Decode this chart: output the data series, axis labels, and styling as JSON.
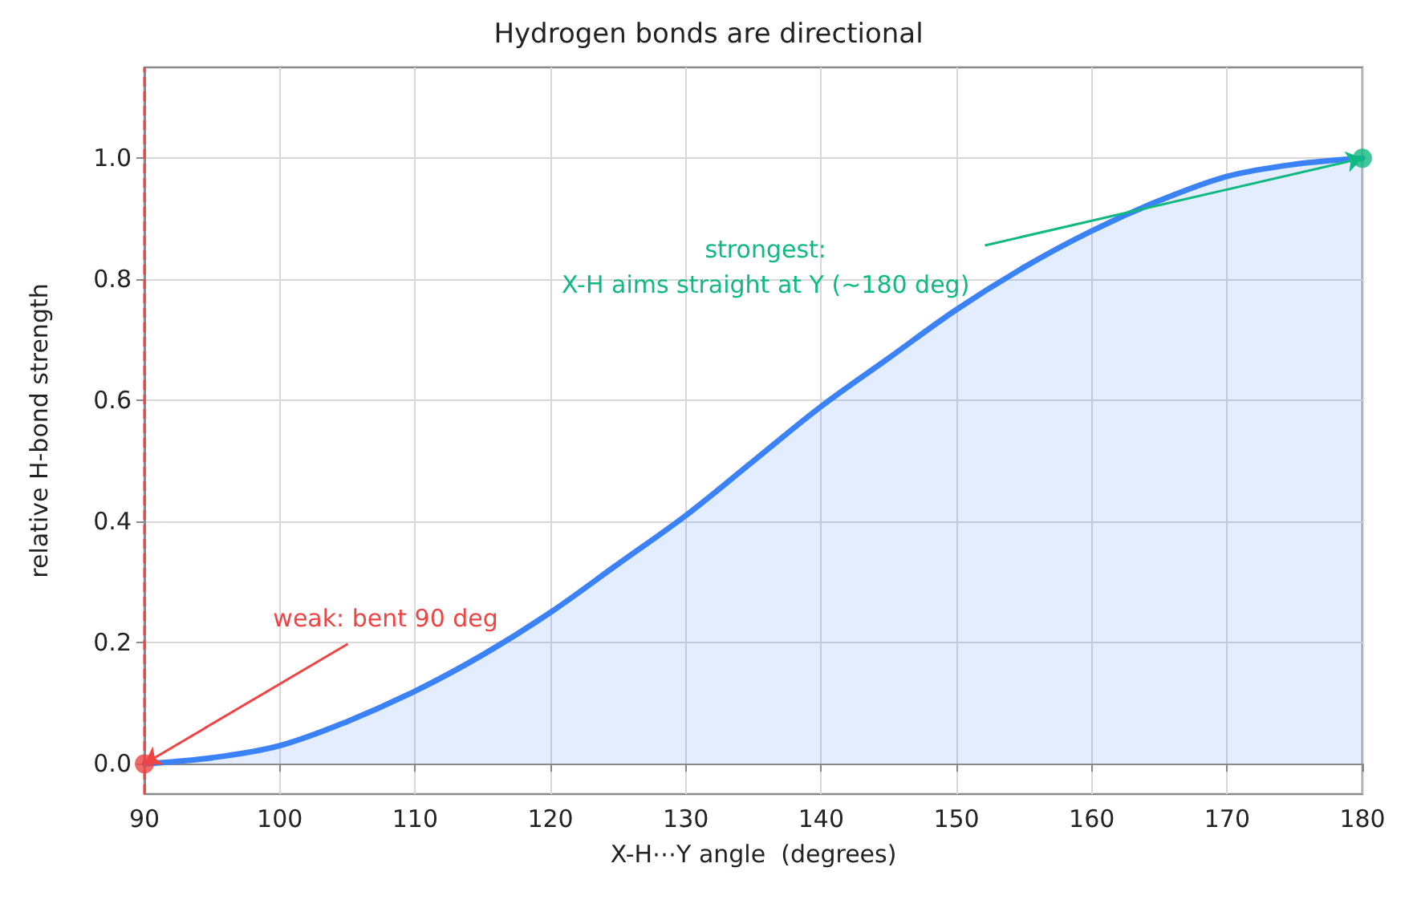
{
  "chart_data": {
    "type": "area",
    "title": "Hydrogen bonds are directional",
    "xlabel": "X-H⋯Y angle  (degrees)",
    "ylabel": "relative H-bond strength",
    "series": [
      {
        "color": "#3b82f6",
        "x": [
          90,
          95,
          100,
          105,
          110,
          115,
          120,
          125,
          130,
          135,
          140,
          145,
          150,
          155,
          160,
          165,
          170,
          175,
          180
        ],
        "values": [
          0.0,
          0.01,
          0.03,
          0.07,
          0.12,
          0.18,
          0.25,
          0.33,
          0.41,
          0.5,
          0.59,
          0.67,
          0.75,
          0.82,
          0.88,
          0.93,
          0.97,
          0.99,
          1.0
        ]
      },
      {
        "type": "scatter",
        "colors": [
          "#ef4444",
          "#10b981"
        ],
        "x": [
          90,
          180
        ],
        "values": [
          0.0,
          1.0
        ]
      }
    ],
    "annotations": [
      {
        "text": "weak: bent 90 deg",
        "x": 90,
        "y": 0.0
      },
      {
        "text": "strongest:\nX-H aims straight at Y (~180 deg)",
        "x": 180,
        "y": 1.0
      }
    ],
    "ref_lines": [
      {
        "axis": "x",
        "value": 90,
        "color": "#ef4444",
        "line_style": "dashed"
      }
    ],
    "xlim": [
      90,
      180
    ],
    "xticks": [
      90,
      100,
      110,
      120,
      130,
      140,
      150,
      160,
      170,
      180
    ],
    "ylim": [
      -0.05,
      1.15
    ],
    "yticks": [
      {
        "value": 0,
        "label": "0.0"
      },
      0.2,
      0.4,
      0.6,
      0.8,
      {
        "value": 1,
        "label": "1.0"
      }
    ],
    "grid": true,
    "line_style": "solid"
  }
}
